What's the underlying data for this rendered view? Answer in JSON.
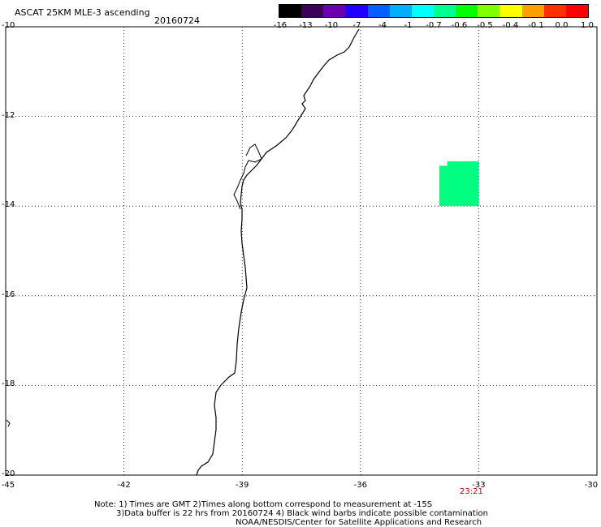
{
  "title": "ASCAT 25KM MLE-3 ascending",
  "date": "20160724",
  "colorbar": {
    "labels": [
      "-16",
      "-13",
      "-10",
      "-7",
      "-4",
      "-1",
      "-0.7",
      "-0.6",
      "-0.5",
      "-0.4",
      "-0.1",
      "0.0",
      "1.0"
    ],
    "colors": [
      "#000000",
      "#3a005a",
      "#6a00b0",
      "#2000ff",
      "#0060ff",
      "#00b0ff",
      "#00ffff",
      "#00ff90",
      "#00ff00",
      "#80ff00",
      "#ffff00",
      "#ffa000",
      "#ff3000",
      "#ff0000"
    ]
  },
  "map": {
    "lat_labels": [
      "-10",
      "-12",
      "-14",
      "-16",
      "-18",
      "-20"
    ],
    "lon_labels": [
      "-45",
      "-42",
      "-39",
      "-36",
      "-33",
      "-30"
    ],
    "lat_range": [
      -20,
      -10
    ],
    "lon_range": [
      -45,
      -30
    ],
    "coast_color": "#000000",
    "data_color": "#00ff80",
    "data_cells": [
      {
        "lon_min": -33.8,
        "lon_max": -33.0,
        "lat_min": -14.0,
        "lat_max": -13.0
      },
      {
        "lon_min": -34.0,
        "lon_max": -33.8,
        "lat_min": -14.0,
        "lat_max": -13.1
      }
    ],
    "time_label": "23:21"
  },
  "notes": {
    "line1": "Note: 1) Times are GMT 2)Times along bottom correspond to measurement at -15S",
    "line2": "3)Data buffer is 22 hrs from 20160724 4) Black wind barbs indicate possible contamination",
    "line3": "NOAA/NESDIS/Center for Satellite Applications and Research"
  }
}
